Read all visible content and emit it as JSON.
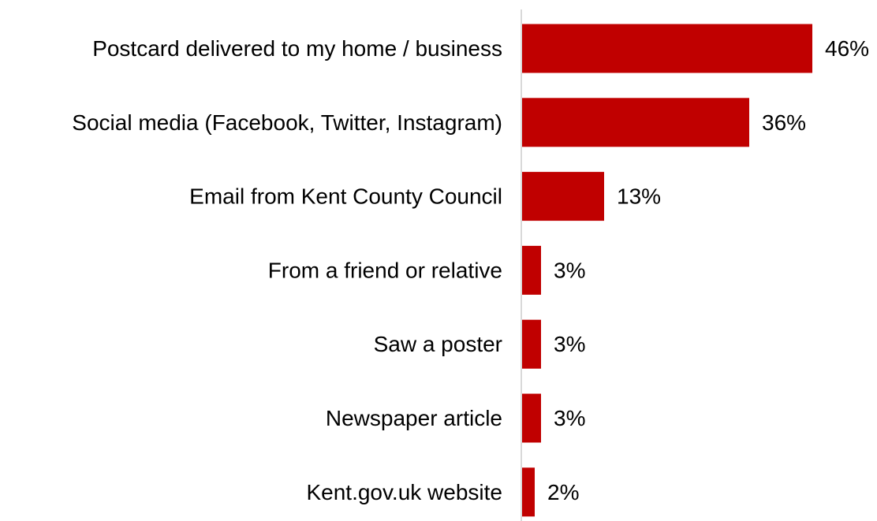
{
  "chart_data": {
    "type": "bar",
    "orientation": "horizontal",
    "categories": [
      "Postcard delivered to my home / business",
      "Social media (Facebook, Twitter, Instagram)",
      "Email from Kent County Council",
      "From a friend or relative",
      "Saw a poster",
      "Newspaper article",
      "Kent.gov.uk website"
    ],
    "values": [
      46,
      36,
      13,
      3,
      3,
      3,
      2
    ],
    "value_labels": [
      "46%",
      "36%",
      "13%",
      "3%",
      "3%",
      "3%",
      "2%"
    ],
    "title": "",
    "xlabel": "",
    "ylabel": "",
    "xlim": [
      0,
      48
    ],
    "grid": false,
    "legend": "none",
    "colors": {
      "bar": "#C00000",
      "axis": "#D9D9D9",
      "text": "#000000"
    }
  }
}
